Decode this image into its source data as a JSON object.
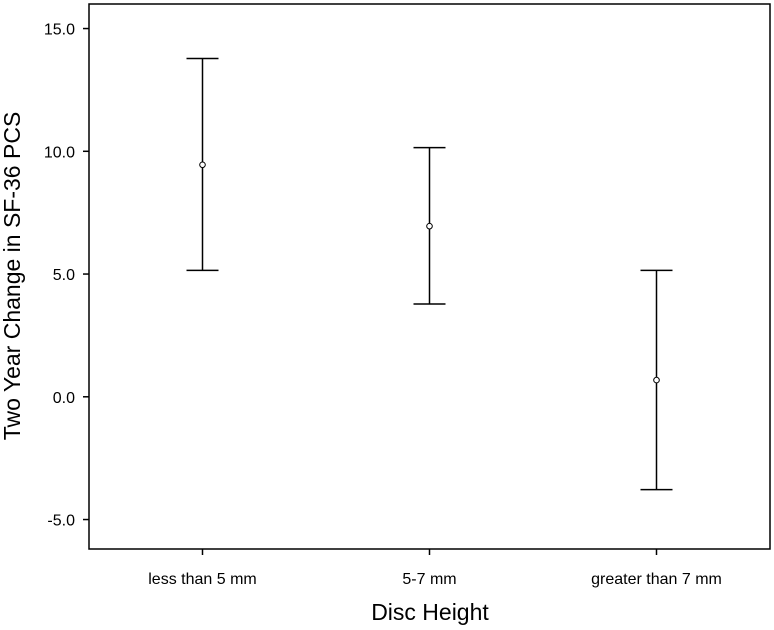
{
  "chart_data": {
    "type": "errorbar",
    "xlabel": "Disc Height",
    "ylabel": "Two Year Change in SF-36 PCS",
    "categories": [
      "less than 5 mm",
      "5-7 mm",
      "greater than 7 mm"
    ],
    "series": [
      {
        "means": [
          9.45,
          6.95,
          0.68
        ],
        "lower": [
          5.15,
          3.78,
          -3.78
        ],
        "upper": [
          13.78,
          10.15,
          5.15
        ]
      }
    ],
    "ylim": [
      -6.2,
      16.0
    ],
    "yticks": [
      -5.0,
      0.0,
      5.0,
      10.0,
      15.0
    ],
    "ytick_labels": [
      "-5.0",
      "0.0",
      "5.0",
      "10.0",
      "15.0"
    ],
    "grid": false,
    "legend": "none",
    "colors": {
      "marks": "#000000",
      "background": "#ffffff"
    }
  }
}
